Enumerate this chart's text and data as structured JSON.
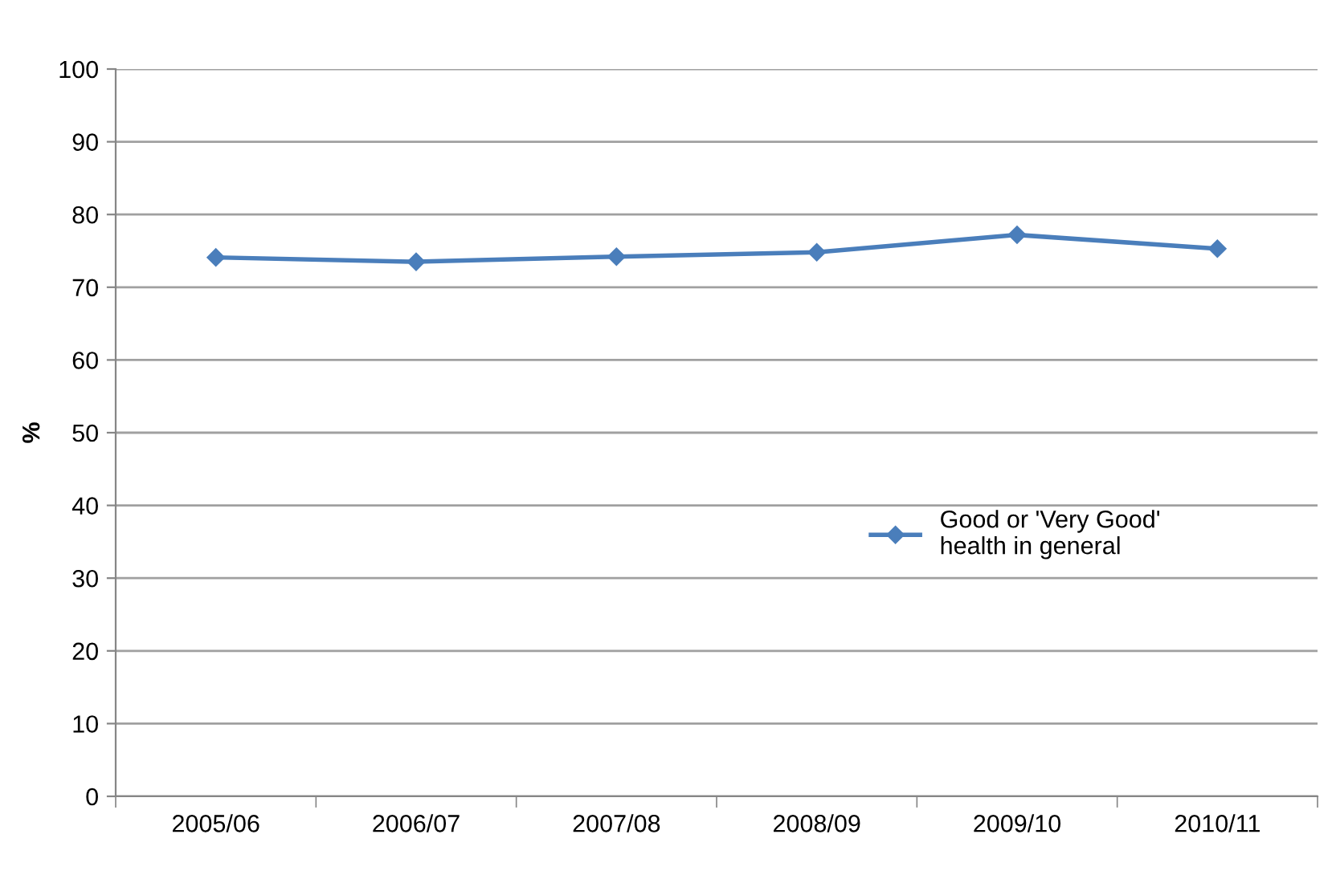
{
  "chart_data": {
    "type": "line",
    "ylabel": "%",
    "categories": [
      "2005/06",
      "2006/07",
      "2007/08",
      "2008/09",
      "2009/10",
      "2010/11"
    ],
    "series": [
      {
        "name": "Good or 'Very Good'\nhealth in general",
        "color": "#4a7ebb",
        "values": [
          74.1,
          73.5,
          74.2,
          74.8,
          77.2,
          75.3
        ]
      }
    ],
    "ylim": [
      0,
      100
    ],
    "yticks": [
      0,
      10,
      20,
      30,
      40,
      50,
      60,
      70,
      80,
      90,
      100
    ],
    "grid": "y",
    "legend": "right",
    "marker": "diamond",
    "line_style": "solid"
  }
}
